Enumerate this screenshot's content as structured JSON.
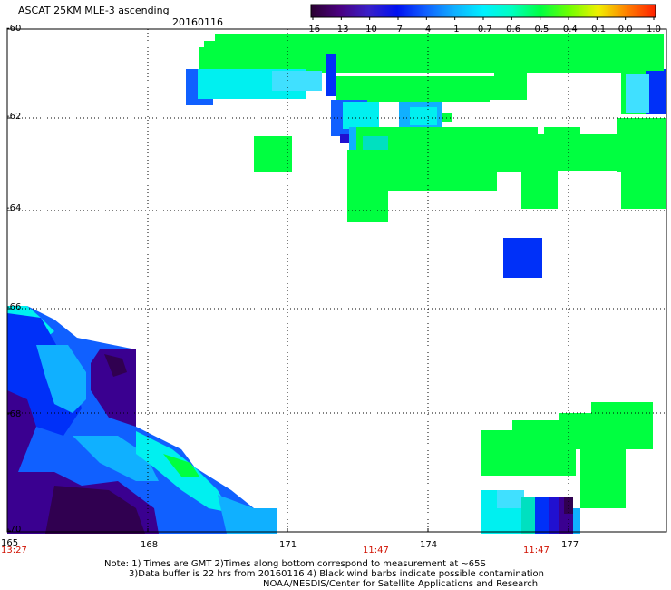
{
  "header": {
    "title": "ASCAT 25KM MLE-3 ascending",
    "date": "20160116"
  },
  "colorbar": {
    "labels": [
      "-16",
      "-13",
      "-10",
      "-7",
      "-4",
      "-1",
      "-0.7",
      "-0.6",
      "-0.5",
      "-0.4",
      "-0.1",
      "0.0",
      "1.0"
    ],
    "colors": [
      "#2a0030",
      "#4a0080",
      "#3a20c8",
      "#0010f0",
      "#1060ff",
      "#10b0ff",
      "#00f0ff",
      "#00ffc0",
      "#00ff40",
      "#70ff00",
      "#f0f000",
      "#ff8000",
      "#ff2000"
    ]
  },
  "axes": {
    "lat_labels": [
      "-60",
      "-62",
      "-64",
      "-66",
      "-68",
      "-70"
    ],
    "lon_labels": [
      "165",
      "168",
      "171",
      "174",
      "177"
    ]
  },
  "time_labels": [
    "13:27",
    "11:47",
    "11:47"
  ],
  "footer": {
    "line1": "Note: 1) Times are GMT 2)Times along bottom correspond to measurement at ~65S",
    "line2": "3)Data buffer is 22 hrs from 20160116 4) Black wind barbs indicate possible contamination",
    "line3": "NOAA/NESDIS/Center for Satellite Applications and Research"
  },
  "palette": {
    "green": "#00ff40",
    "green2": "#10f060",
    "cyan": "#00f0f0",
    "teal": "#00e0c0",
    "sky": "#10b0ff",
    "blue": "#0030f8",
    "blue2": "#1060ff",
    "navy": "#2010d0",
    "purple": "#3a0090",
    "darkpurple": "#300050",
    "lightcyan": "#40e0ff"
  }
}
